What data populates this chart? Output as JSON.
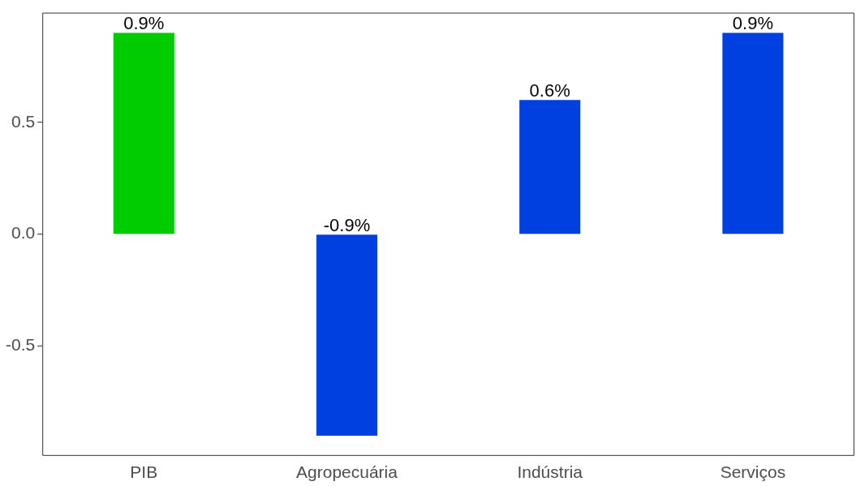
{
  "chart_data": {
    "type": "bar",
    "categories": [
      "PIB",
      "Agropecuária",
      "Indústria",
      "Serviços"
    ],
    "values": [
      0.9,
      -0.9,
      0.6,
      0.9
    ],
    "colors": [
      "#00cc00",
      "#0040e0",
      "#0040e0",
      "#0040e0"
    ],
    "value_labels": [
      "0.9%",
      "-0.9%",
      "0.6%",
      "0.9%"
    ],
    "ylim": [
      -0.99,
      0.99
    ],
    "yticks": [
      {
        "value": -0.5,
        "label": "-0.5"
      },
      {
        "value": 0,
        "label": "0.0"
      },
      {
        "value": 0.5,
        "label": "0.5"
      }
    ],
    "grid": false,
    "legend": false
  }
}
